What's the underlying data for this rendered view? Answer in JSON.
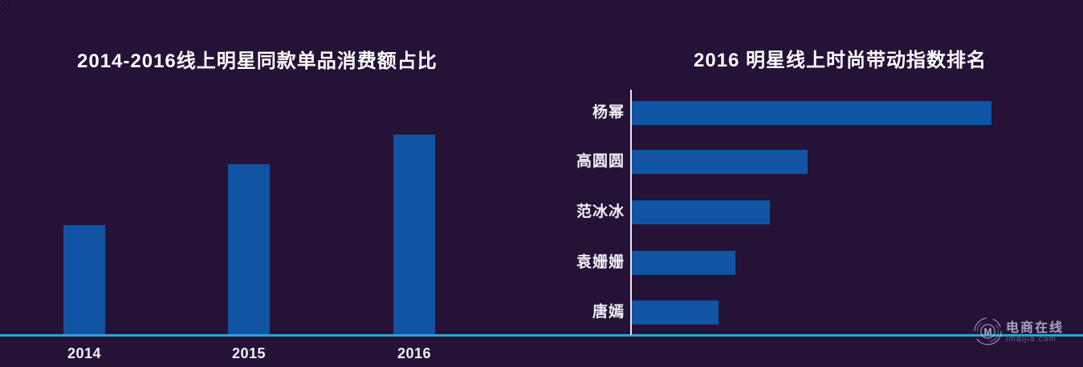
{
  "colors": {
    "background": "#241237",
    "bar": "#1254a4",
    "baseline": "#2da2dd",
    "axis_line": "#e9e5f2",
    "title_text": "#ffffff",
    "label_text": "#f2f1f7",
    "watermark_text": "#aba3bd",
    "watermark_domain_text": "#6e6783"
  },
  "chart_data": [
    {
      "type": "bar",
      "orientation": "vertical",
      "title": "2014-2016线上明星同款单品消费额占比",
      "categories": [
        "2014",
        "2015",
        "2016"
      ],
      "values": [
        54.6,
        85.1,
        100
      ],
      "value_note": "relative bar heights; chart shows no numeric y-axis, 2016 bar taken as 100",
      "xlabel": "",
      "ylabel": "",
      "ylim": [
        0,
        100
      ],
      "grid": false,
      "legend": false
    },
    {
      "type": "bar",
      "orientation": "horizontal",
      "title": "2016 明星线上时尚带动指数排名",
      "categories": [
        "杨幂",
        "高圆圆",
        "范冰冰",
        "袁姗姗",
        "唐嫣"
      ],
      "values": [
        100,
        48.9,
        38.4,
        28.8,
        24.1
      ],
      "value_note": "relative bar lengths; chart shows no numeric x-axis, 杨幂 bar taken as 100",
      "xlabel": "",
      "ylabel": "",
      "xlim": [
        0,
        100
      ],
      "grid": false,
      "legend": false
    }
  ],
  "watermark": {
    "name": "电商在线",
    "domain": "imaijia.com",
    "logo_letter": "M"
  }
}
